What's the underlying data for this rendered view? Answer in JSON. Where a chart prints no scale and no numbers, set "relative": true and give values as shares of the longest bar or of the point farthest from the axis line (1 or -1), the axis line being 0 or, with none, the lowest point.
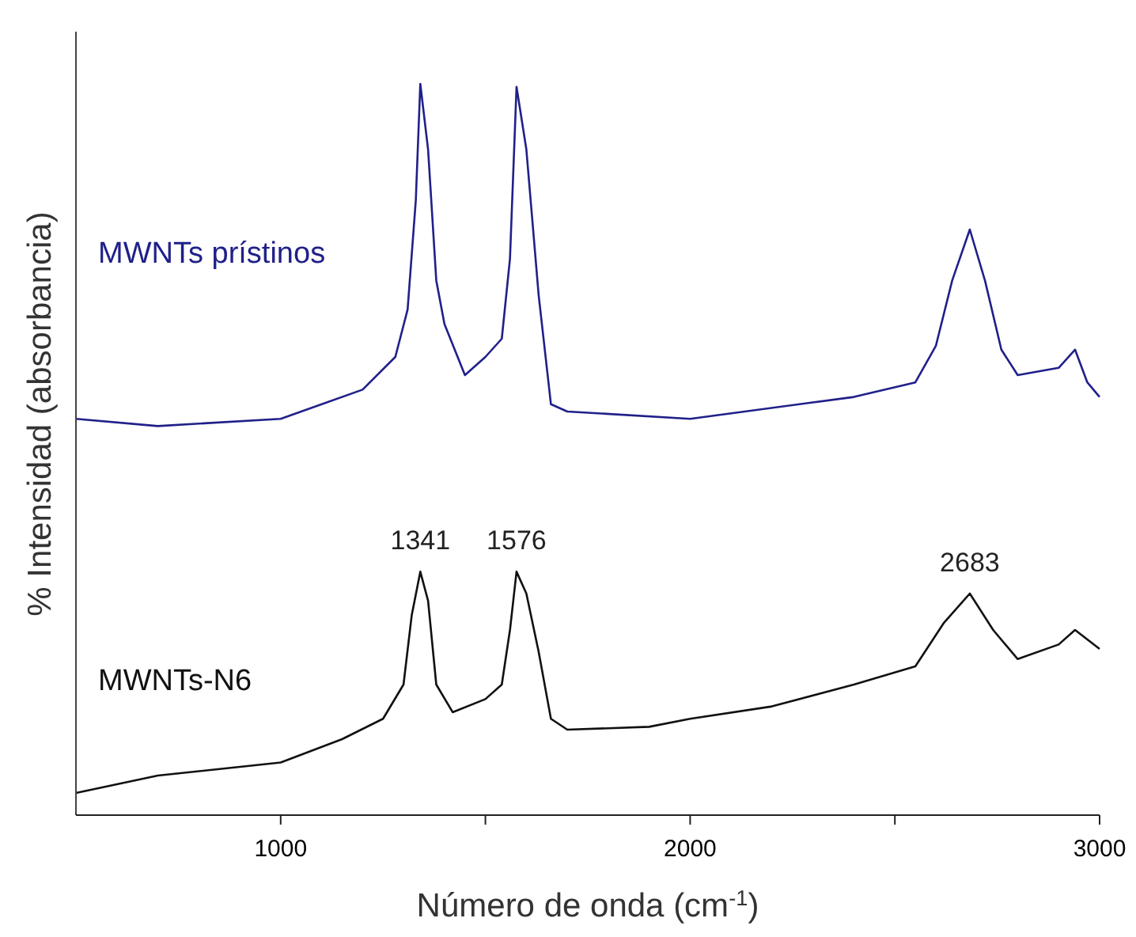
{
  "chart_data": {
    "type": "line",
    "relative": true,
    "xlabel": "Número de onda (cm$^{-1}$)",
    "ylabel": "% Intensidad (absorbancia)",
    "xlim": [
      500,
      3000
    ],
    "xticks": [
      1000,
      {
        "value": 1500,
        "label": null
      },
      2000,
      {
        "value": 2500,
        "label": null
      },
      3000
    ],
    "marker": "none",
    "line_style": "solid",
    "series": [
      {
        "name": "MWNTs prístinos",
        "color": "#20208a",
        "x": [
          500,
          700,
          1000,
          1200,
          1280,
          1310,
          1330,
          1341,
          1360,
          1380,
          1400,
          1450,
          1500,
          1540,
          1560,
          1576,
          1600,
          1630,
          1660,
          1700,
          2000,
          2400,
          2550,
          2600,
          2640,
          2683,
          2720,
          2760,
          2800,
          2900,
          2940,
          2970,
          3000
        ],
        "values": [
          0.54,
          0.53,
          0.54,
          0.58,
          0.625,
          0.69,
          0.84,
          1.0,
          0.91,
          0.73,
          0.67,
          0.6,
          0.625,
          0.65,
          0.76,
          0.996,
          0.91,
          0.71,
          0.56,
          0.55,
          0.54,
          0.57,
          0.59,
          0.64,
          0.73,
          0.8,
          0.73,
          0.635,
          0.6,
          0.61,
          0.635,
          0.59,
          0.57
        ]
      },
      {
        "name": "MWNTs-N6",
        "color": "#111111",
        "x": [
          500,
          700,
          1000,
          1150,
          1250,
          1300,
          1320,
          1341,
          1360,
          1380,
          1420,
          1500,
          1540,
          1560,
          1576,
          1600,
          1630,
          1660,
          1700,
          1900,
          2000,
          2200,
          2400,
          2550,
          2620,
          2683,
          2740,
          2800,
          2900,
          2940,
          3000
        ],
        "values": [
          0.026,
          0.05,
          0.068,
          0.1,
          0.128,
          0.175,
          0.27,
          0.33,
          0.29,
          0.175,
          0.137,
          0.155,
          0.175,
          0.25,
          0.33,
          0.3,
          0.22,
          0.128,
          0.113,
          0.117,
          0.128,
          0.145,
          0.175,
          0.2,
          0.26,
          0.3,
          0.25,
          0.21,
          0.23,
          0.25,
          0.224
        ]
      }
    ],
    "annotations": [
      {
        "text": "1341",
        "x": 1341,
        "y": 0.33
      },
      {
        "text": "1576",
        "x": 1576,
        "y": 0.33
      },
      {
        "text": "2683",
        "x": 2683,
        "y": 0.3
      }
    ]
  }
}
